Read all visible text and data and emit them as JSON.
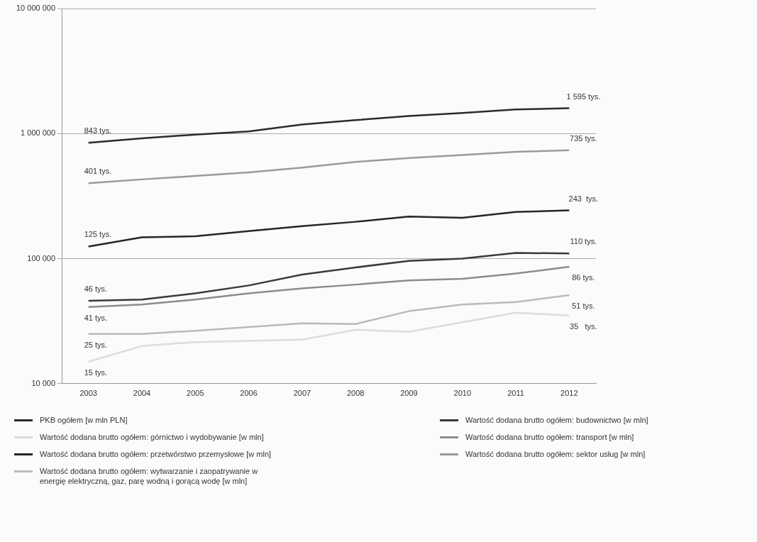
{
  "chart_data": {
    "type": "line",
    "categories": [
      "2003",
      "2004",
      "2005",
      "2006",
      "2007",
      "2008",
      "2009",
      "2010",
      "2011",
      "2012"
    ],
    "log": "y",
    "ylim": [
      10000,
      10000000
    ],
    "yticks": [
      {
        "value": 10000,
        "label": "10 000"
      },
      {
        "value": 100000,
        "label": "100 000"
      },
      {
        "value": 1000000,
        "label": "1 000 000"
      },
      {
        "value": 10000000,
        "label": "10 000 000"
      }
    ],
    "grid": "y",
    "legend": "bottom",
    "marker": "none",
    "line_style": "solid",
    "series": [
      {
        "name": "PKB ogółem [w mln PLN]",
        "color": "#2b2b2b",
        "values": [
          843000,
          916000,
          982000,
          1040000,
          1180000,
          1280000,
          1380000,
          1460000,
          1560000,
          1595000
        ]
      },
      {
        "name": "Wartość dodana brutto ogółem: górnictwo i wydobywanie [w mln]",
        "color": "#dcdcdc",
        "values": [
          15000,
          20000,
          21500,
          22000,
          22500,
          27000,
          26000,
          31000,
          37000,
          35000
        ]
      },
      {
        "name": "Wartość dodana brutto ogółem: przetwórstwo przemysłowe [w mln]",
        "color": "#262626",
        "values": [
          125000,
          148000,
          151000,
          166000,
          182000,
          197000,
          217000,
          212000,
          236000,
          243000
        ]
      },
      {
        "name": "Wartość dodana brutto ogółem: wytwarzanie i zaopatrywanie w energię elektryczną, gaz, parę wodną i gorącą wodę [w mln]",
        "color": "#bababa",
        "values": [
          25000,
          25000,
          26500,
          28400,
          30400,
          30000,
          38000,
          43000,
          45000,
          51000
        ]
      },
      {
        "name": "Wartość dodana brutto ogółem: budownictwo [w mln]",
        "color": "#3a3a3a",
        "values": [
          46000,
          47000,
          52800,
          61000,
          74500,
          85000,
          96000,
          100000,
          111000,
          110000
        ]
      },
      {
        "name": "Wartość dodana brutto ogółem: transport [w mln]",
        "color": "#8c8c8c",
        "values": [
          41000,
          43000,
          47000,
          52800,
          57800,
          62000,
          67000,
          69000,
          76000,
          86000
        ]
      },
      {
        "name": "Wartość dodana brutto ogółem: sektor usług  [w mln]",
        "color": "#9a9a9a",
        "values": [
          401000,
          430000,
          458000,
          489000,
          535000,
          593000,
          638000,
          673000,
          715000,
          735000
        ]
      }
    ],
    "annotations": [
      {
        "text": "843 tys.",
        "x": "2003",
        "y": 843000
      },
      {
        "text": "1 595 tys.",
        "x": "2012",
        "y": 1595000
      },
      {
        "text": "15 tys.",
        "x": "2003",
        "y": 15000
      },
      {
        "text": "35   tys.",
        "x": "2012",
        "y": 35000
      },
      {
        "text": "125 tys.",
        "x": "2003",
        "y": 125000
      },
      {
        "text": "243  tys.",
        "x": "2012",
        "y": 243000
      },
      {
        "text": "25 tys.",
        "x": "2003",
        "y": 25000
      },
      {
        "text": "51 tys.",
        "x": "2012",
        "y": 51000
      },
      {
        "text": "46 tys.",
        "x": "2003",
        "y": 46000
      },
      {
        "text": "110 tys.",
        "x": "2012",
        "y": 110000
      },
      {
        "text": "41 tys.",
        "x": "2003",
        "y": 41000
      },
      {
        "text": "86 tys.",
        "x": "2012",
        "y": 86000
      },
      {
        "text": "401 tys.",
        "x": "2003",
        "y": 401000
      },
      {
        "text": "735 tys.",
        "x": "2012",
        "y": 735000
      }
    ]
  }
}
